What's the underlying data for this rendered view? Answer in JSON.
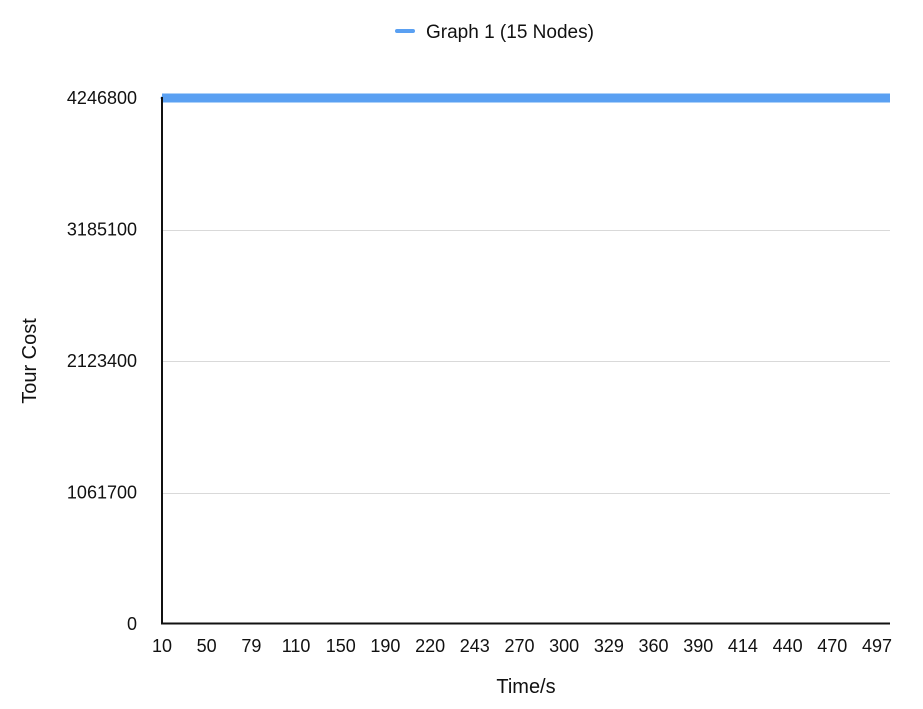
{
  "chart_data": {
    "type": "line",
    "xlabel": "Time/s",
    "ylabel": "Tour Cost",
    "categories": [
      "10",
      "50",
      "79",
      "110",
      "150",
      "190",
      "220",
      "243",
      "270",
      "300",
      "329",
      "360",
      "390",
      "414",
      "440",
      "470",
      "497"
    ],
    "y_ticks": [
      0,
      1061700,
      2123400,
      3185100,
      4246800
    ],
    "ylim": [
      0,
      4246800
    ],
    "grid": true,
    "legend_position": "top-center",
    "series": [
      {
        "name": "Graph 1 (15 Nodes)",
        "color": "#5aa0f2",
        "values": [
          4246800,
          4246800,
          4246800,
          4246800,
          4246800,
          4246800,
          4246800,
          4246800,
          4246800,
          4246800,
          4246800,
          4246800,
          4246800,
          4246800,
          4246800,
          4246800,
          4246800
        ]
      }
    ]
  }
}
